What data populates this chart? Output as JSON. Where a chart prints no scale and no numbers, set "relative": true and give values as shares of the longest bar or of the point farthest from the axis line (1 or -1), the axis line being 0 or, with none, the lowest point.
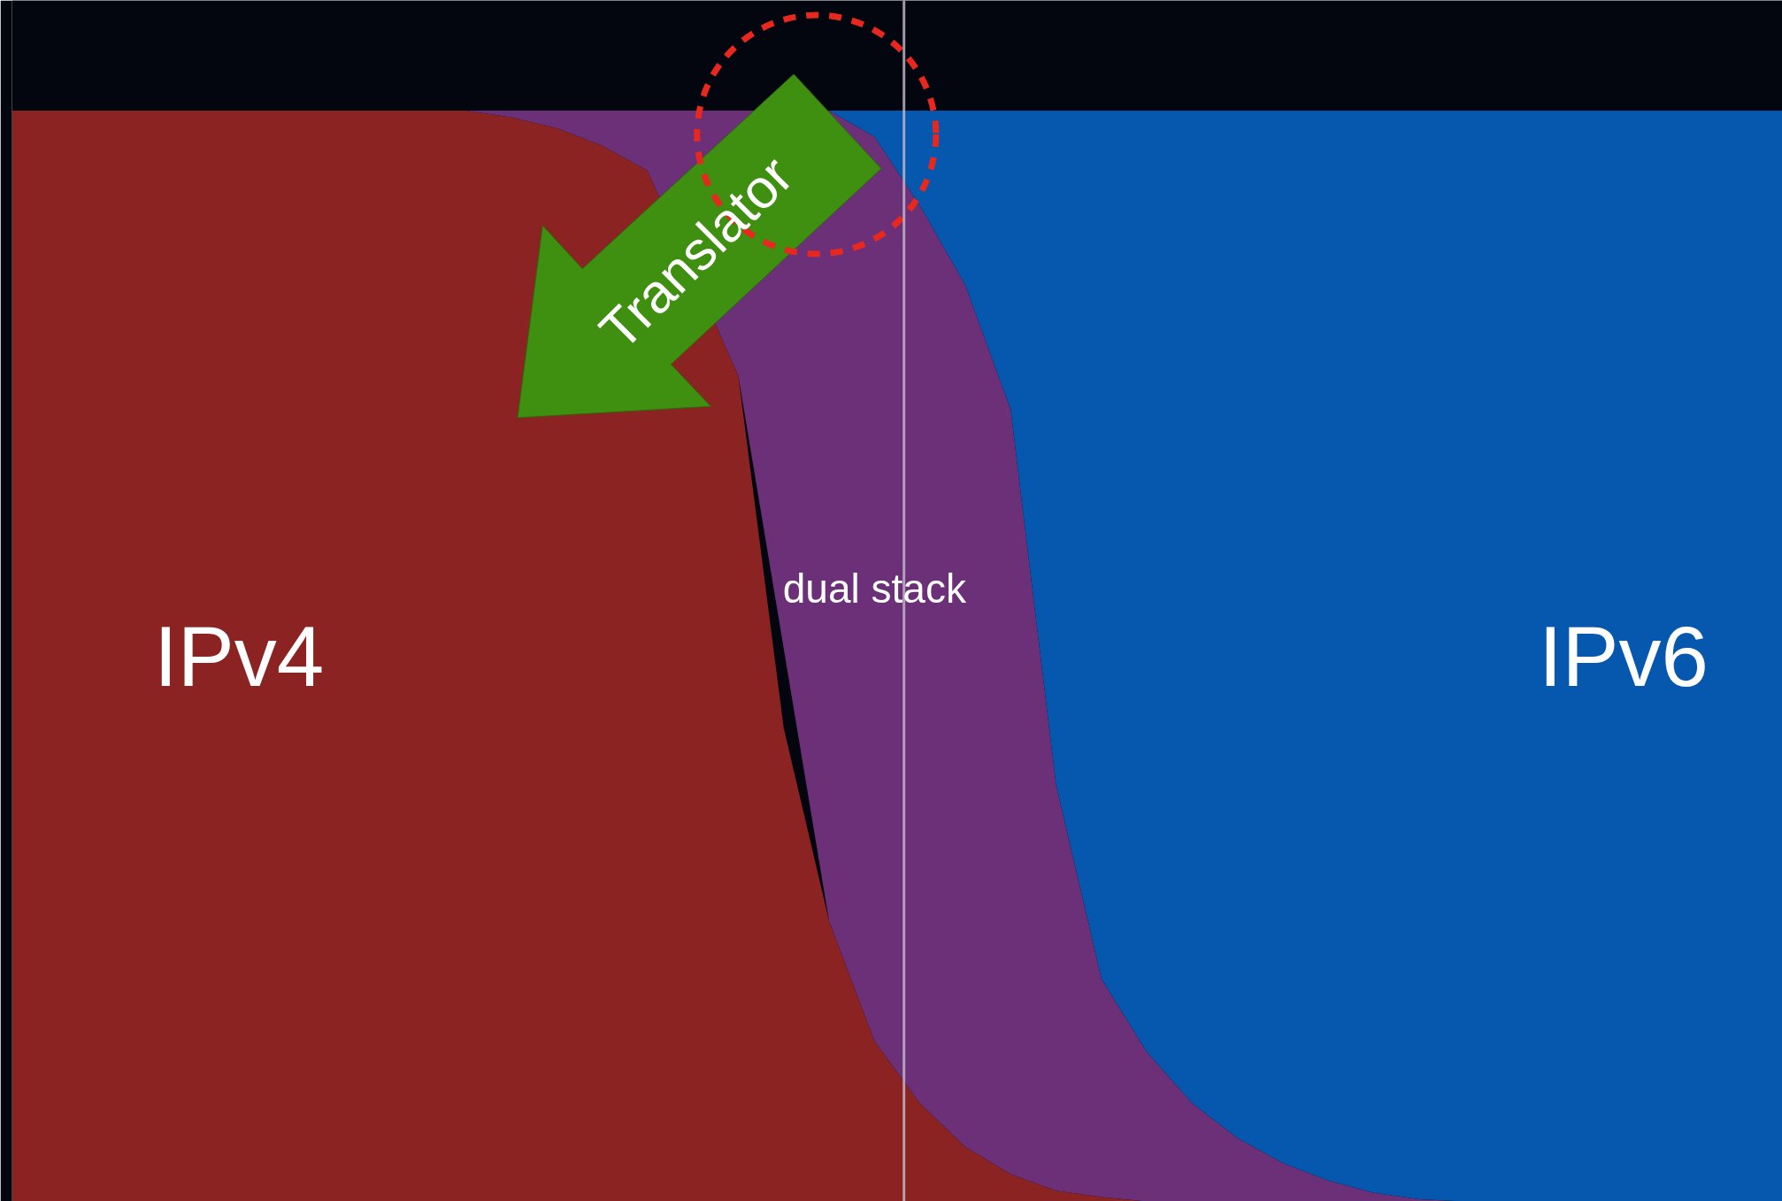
{
  "chart_data": {
    "type": "area",
    "stacked": true,
    "relative": true,
    "grid": false,
    "categories": [
      null,
      null,
      null,
      null,
      null,
      null,
      null,
      null,
      null,
      null,
      null,
      null,
      null,
      null,
      null,
      null,
      null,
      null,
      null,
      null,
      null,
      null,
      null,
      null,
      null,
      null,
      null,
      null,
      null,
      null,
      null,
      null,
      null,
      null,
      null,
      null,
      null,
      null,
      null,
      null
    ],
    "series": [
      {
        "name": "IPv4",
        "color": "#8c2323",
        "values": [
          1,
          1,
          1,
          1,
          1,
          1,
          1,
          1,
          1,
          1,
          1,
          0.994,
          0.984,
          0.968,
          0.945,
          null,
          0.757,
          0.434,
          0.257,
          0.147,
          0.09,
          0.05,
          0.025,
          0.01,
          0.004,
          0,
          null,
          null,
          null,
          null,
          null,
          null,
          null,
          null,
          null,
          null,
          null,
          null,
          null,
          null
        ]
      },
      {
        "name": "dual stack",
        "color": "#6c3078",
        "values": [
          null,
          null,
          null,
          null,
          null,
          null,
          null,
          null,
          null,
          null,
          0,
          0.006,
          0.016,
          0.032,
          0.055,
          null,
          0.243,
          null,
          0.743,
          0.829,
          0.823,
          0.79,
          0.701,
          0.372,
          0.2,
          0.137,
          0.09,
          0.058,
          0.035,
          0.019,
          0.008,
          0.002,
          0,
          null,
          null,
          null,
          null,
          null,
          null,
          null
        ]
      },
      {
        "name": "IPv6",
        "color": "#0657ae",
        "values": [
          null,
          null,
          null,
          null,
          null,
          null,
          null,
          null,
          null,
          null,
          null,
          null,
          null,
          null,
          null,
          null,
          null,
          null,
          0,
          0.024,
          0.087,
          0.16,
          0.274,
          0.618,
          0.796,
          0.863,
          0.91,
          0.942,
          0.965,
          0.981,
          0.992,
          0.998,
          1,
          1,
          1,
          1,
          1,
          1,
          1,
          1
        ]
      }
    ],
    "annotations": [
      "Translator"
    ]
  }
}
